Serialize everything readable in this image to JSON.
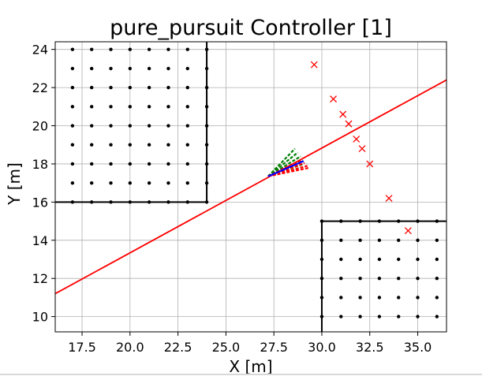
{
  "chart_data": {
    "type": "scatter",
    "title": "pure_pursuit Controller [1]",
    "xlabel": "X [m]",
    "ylabel": "Y [m]",
    "xlim": [
      16.1,
      36.5
    ],
    "ylim": [
      9.2,
      24.4
    ],
    "grid": true,
    "x_ticks": [
      17.5,
      20.0,
      22.5,
      25.0,
      27.5,
      30.0,
      32.5,
      35.0
    ],
    "x_tick_labels": [
      "17.5",
      "20.0",
      "22.5",
      "25.0",
      "27.5",
      "30.0",
      "32.5",
      "35.0"
    ],
    "y_ticks": [
      10,
      12,
      14,
      16,
      18,
      20,
      22,
      24
    ],
    "y_tick_labels": [
      "10",
      "12",
      "14",
      "16",
      "18",
      "20",
      "22",
      "24"
    ],
    "reference_path": {
      "color": "#ff0000",
      "x": [
        16.1,
        36.5
      ],
      "y": [
        11.2,
        22.4
      ]
    },
    "waypoints": {
      "marker": "x",
      "color": "#ff0000",
      "points": [
        [
          29.6,
          23.2
        ],
        [
          30.6,
          21.4
        ],
        [
          31.1,
          20.6
        ],
        [
          31.4,
          20.1
        ],
        [
          31.8,
          19.3
        ],
        [
          32.1,
          18.8
        ],
        [
          32.5,
          18.0
        ],
        [
          33.5,
          16.2
        ],
        [
          34.5,
          14.5
        ]
      ]
    },
    "obstacles": [
      {
        "boundary_color": "#000000",
        "boundary": [
          [
            24.0,
            24.4
          ],
          [
            24.0,
            16.0
          ],
          [
            16.1,
            16.0
          ]
        ],
        "dots_x": [
          17,
          18,
          19,
          20,
          21,
          22,
          23,
          24
        ],
        "dots_y": [
          16,
          17,
          18,
          19,
          20,
          21,
          22,
          23,
          24
        ]
      },
      {
        "boundary_color": "#000000",
        "boundary": [
          [
            30.0,
            9.2
          ],
          [
            30.0,
            15.0
          ],
          [
            36.5,
            15.0
          ]
        ],
        "dots_x": [
          30,
          31,
          32,
          33,
          34,
          35,
          36
        ],
        "dots_y": [
          10,
          11,
          12,
          13,
          14,
          15
        ]
      }
    ],
    "vehicle": {
      "origin": [
        27.2,
        17.35
      ],
      "rollouts_green": {
        "color": "#008000",
        "ends": [
          [
            28.6,
            18.8
          ],
          [
            28.75,
            18.6
          ],
          [
            28.9,
            18.4
          ],
          [
            29.0,
            18.2
          ],
          [
            29.05,
            18.0
          ]
        ]
      },
      "selected": {
        "color": "#0000ff",
        "end": [
          29.05,
          18.15
        ]
      },
      "rollouts_red": {
        "color": "#ff0000",
        "ends": [
          [
            28.9,
            18.2
          ],
          [
            29.1,
            18.05
          ],
          [
            29.25,
            17.9
          ],
          [
            29.35,
            17.8
          ]
        ]
      }
    }
  }
}
